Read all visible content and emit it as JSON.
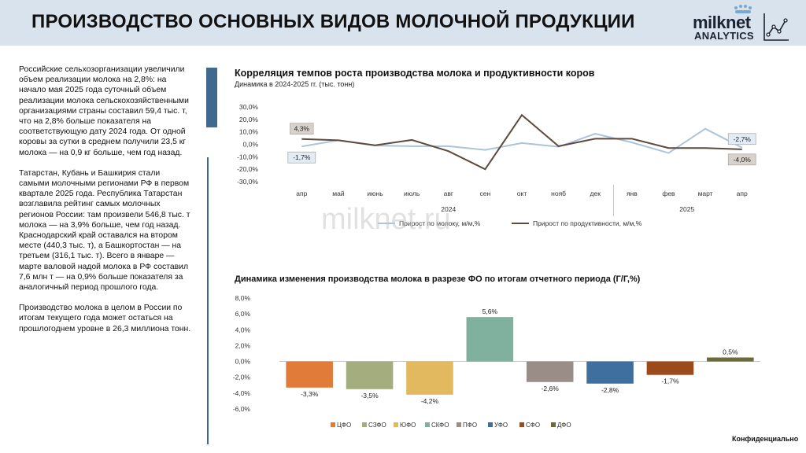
{
  "header": {
    "title": "ПРОИЗВОДСТВО ОСНОВНЫХ ВИДОВ МОЛОЧНОЙ ПРОДУКЦИИ",
    "logo_main": "milknet",
    "logo_sub": "ANALYTICS"
  },
  "sidebar": {
    "paragraphs": [
      "Российские сельхозорганизации увеличили объем реализации молока на 2,8%: на начало мая 2025 года суточный объем реализации молока сельскохозяйственными организациями страны составил 59,4 тыс. т, что на 2,8% больше показателя на соответствующую дату 2024 года. От одной коровы за сутки в среднем получили 23,5 кг молока — на 0,9 кг больше, чем год назад.",
      "Татарстан, Кубань и Башкирия стали самыми молочными регионами РФ в первом квартале 2025 года. Республика Татарстан возглавила рейтинг самых молочных регионов России: там произвели 546,8 тыс. т молока — на 3,9% больше, чем год назад. Краснодарский край оставался на втором месте (440,3 тыс. т), а Башкортостан — на третьем (316,1 тыс. т). Всего в январе — марте валовой надой молока в РФ составил 7,6 млн т — на 0,9% больше показателя за аналогичный период прошлого года.",
      "Производство молока в целом в России по итогам текущего года может остаться на прошлогоднем уровне в 26,3 миллиона тонн."
    ]
  },
  "watermark": "milknet.ru",
  "footer": {
    "confidential": "Конфиденциально"
  },
  "chart_data": [
    {
      "type": "line",
      "title": "Корреляция темпов роста производства молока и продуктивности коров",
      "subtitle": "Динамика в 2024-2025 гг. (тыс. тонн)",
      "x": [
        "апр",
        "май",
        "июнь",
        "июль",
        "авг",
        "сен",
        "окт",
        "нояб",
        "дек",
        "янв",
        "фев",
        "март",
        "апр"
      ],
      "year_groups": [
        {
          "label": "2024",
          "from": 0,
          "to": 8
        },
        {
          "label": "2025",
          "from": 9,
          "to": 12
        }
      ],
      "ylim": [
        -30,
        30
      ],
      "yticks": [
        "30,0%",
        "20,0%",
        "10,0%",
        "0,0%",
        "-10,0%",
        "-20,0%",
        "-30,0%"
      ],
      "series": [
        {
          "name": "Прирост по молоку, м/м,%",
          "color": "#a9c4dc",
          "values": [
            -1.7,
            3.2,
            -1.0,
            -1.5,
            -1.5,
            -4.5,
            1.0,
            -2.0,
            8.5,
            1.5,
            -7.0,
            12.5,
            -2.7
          ]
        },
        {
          "name": "Прирост по продуктивности, м/м,%",
          "color": "#5e4a3e",
          "values": [
            4.3,
            3.2,
            -0.8,
            3.5,
            -5.5,
            -20.0,
            23.5,
            -1.5,
            4.5,
            4.5,
            -3.0,
            -3.0,
            -4.0
          ]
        }
      ],
      "data_labels": [
        {
          "series": 1,
          "index": 0,
          "text": "4,3%"
        },
        {
          "series": 0,
          "index": 0,
          "text": "-1,7%"
        },
        {
          "series": 0,
          "index": 12,
          "text": "-2,7%"
        },
        {
          "series": 1,
          "index": 12,
          "text": "-4,0%"
        }
      ],
      "grid": false,
      "legend": "bottom"
    },
    {
      "type": "bar",
      "title": "Динамика изменения производства молока в разрезе ФО по итогам отчетного периода (Г/Г,%)",
      "categories": [
        "ЦФО",
        "СЗФО",
        "ЮФО",
        "СКФО",
        "ПФО",
        "УФО",
        "СФО",
        "ДФО"
      ],
      "values": [
        -3.3,
        -3.5,
        -4.2,
        5.6,
        -2.6,
        -2.8,
        -1.7,
        0.5
      ],
      "value_labels": [
        "-3,3%",
        "-3,5%",
        "-4,2%",
        "5,6%",
        "-2,6%",
        "-2,8%",
        "-1,7%",
        "0,5%"
      ],
      "colors": [
        "#e07b39",
        "#a3ad7d",
        "#e3b95f",
        "#7fb19e",
        "#9a8c87",
        "#3e6f9e",
        "#9b4a1c",
        "#6b6b3a"
      ],
      "ylim": [
        -6,
        8
      ],
      "yticks": [
        "8,0%",
        "6,0%",
        "4,0%",
        "2,0%",
        "0,0%",
        "-2,0%",
        "-4,0%",
        "-6,0%"
      ],
      "grid": false,
      "legend": "bottom"
    }
  ]
}
